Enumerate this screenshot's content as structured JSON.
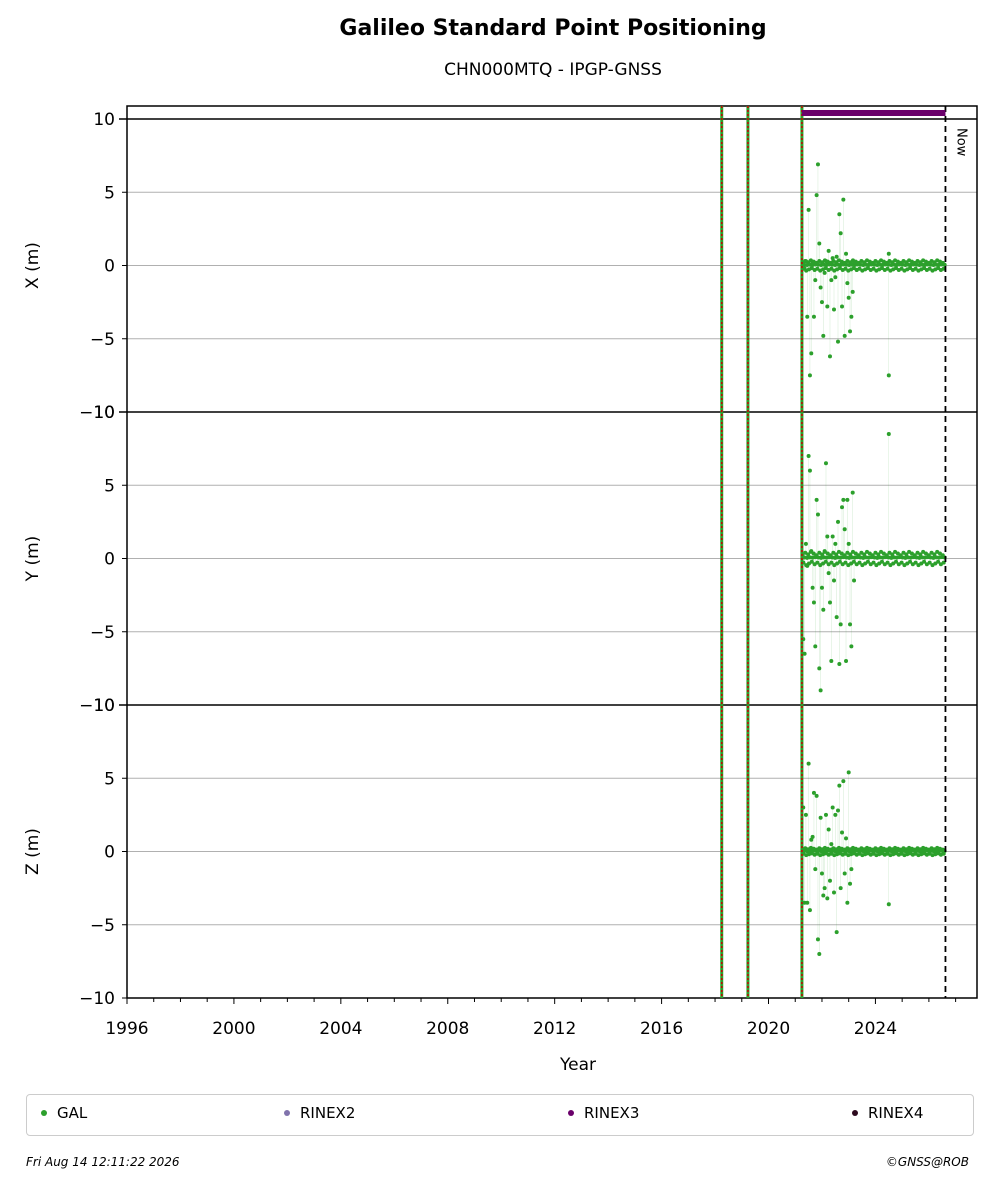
{
  "title": "Galileo Standard Point Positioning",
  "subtitle": "CHN000MTQ - IPGP-GNSS",
  "chart_data": {
    "type": "scatter",
    "xlabel": "Year",
    "xlim": [
      1996.0,
      2027.8
    ],
    "xticks": [
      1996,
      2000,
      2004,
      2008,
      2012,
      2016,
      2020,
      2024
    ],
    "now_label": "Now",
    "now_date": 2026.62,
    "event_lines": [
      2018.25,
      2019.23,
      2021.25
    ],
    "rinex3_coverage": [
      2021.25,
      2026.62
    ],
    "grid": true,
    "panels": [
      {
        "ylabel": "X (m)",
        "ylim": [
          -10,
          10
        ],
        "yticks": [
          -10,
          -5,
          0,
          5,
          10
        ],
        "points": [
          [
            2021.3,
            0.1
          ],
          [
            2021.35,
            -0.2
          ],
          [
            2021.4,
            0.3
          ],
          [
            2021.45,
            -3.5
          ],
          [
            2021.5,
            3.8
          ],
          [
            2021.55,
            -7.5
          ],
          [
            2021.6,
            -6.0
          ],
          [
            2021.65,
            0.2
          ],
          [
            2021.7,
            -3.5
          ],
          [
            2021.75,
            -1.0
          ],
          [
            2021.8,
            4.8
          ],
          [
            2021.85,
            6.9
          ],
          [
            2021.9,
            1.5
          ],
          [
            2021.95,
            -1.5
          ],
          [
            2022.0,
            -2.5
          ],
          [
            2022.05,
            -4.8
          ],
          [
            2022.1,
            -0.5
          ],
          [
            2022.15,
            0.3
          ],
          [
            2022.2,
            -2.8
          ],
          [
            2022.25,
            1.0
          ],
          [
            2022.3,
            -6.2
          ],
          [
            2022.35,
            -1.0
          ],
          [
            2022.4,
            0.5
          ],
          [
            2022.45,
            -3.0
          ],
          [
            2022.5,
            -0.8
          ],
          [
            2022.55,
            0.6
          ],
          [
            2022.6,
            -5.2
          ],
          [
            2022.65,
            3.5
          ],
          [
            2022.7,
            2.2
          ],
          [
            2022.75,
            -2.8
          ],
          [
            2022.8,
            4.5
          ],
          [
            2022.85,
            -4.8
          ],
          [
            2022.9,
            0.8
          ],
          [
            2022.95,
            -1.2
          ],
          [
            2023.0,
            -2.2
          ],
          [
            2023.05,
            -4.5
          ],
          [
            2023.1,
            -3.5
          ],
          [
            2023.15,
            -1.8
          ],
          [
            2023.2,
            0.2
          ],
          [
            2023.3,
            -0.3
          ],
          [
            2024.5,
            -7.5
          ],
          [
            2024.5,
            0.8
          ]
        ],
        "band": 0.35
      },
      {
        "ylabel": "Y (m)",
        "ylim": [
          -10,
          10
        ],
        "yticks": [
          -10,
          -5,
          0,
          5,
          10
        ],
        "points": [
          [
            2021.3,
            -5.5
          ],
          [
            2021.35,
            -6.5
          ],
          [
            2021.4,
            1.0
          ],
          [
            2021.45,
            -0.5
          ],
          [
            2021.5,
            7.0
          ],
          [
            2021.55,
            6.0
          ],
          [
            2021.6,
            0.5
          ],
          [
            2021.65,
            -2.0
          ],
          [
            2021.7,
            -3.0
          ],
          [
            2021.75,
            -6.0
          ],
          [
            2021.8,
            4.0
          ],
          [
            2021.85,
            3.0
          ],
          [
            2021.9,
            -7.5
          ],
          [
            2021.95,
            -9.0
          ],
          [
            2022.0,
            -2.0
          ],
          [
            2022.05,
            -3.5
          ],
          [
            2022.1,
            0.5
          ],
          [
            2022.15,
            6.5
          ],
          [
            2022.2,
            1.5
          ],
          [
            2022.25,
            -1.0
          ],
          [
            2022.3,
            -3.0
          ],
          [
            2022.35,
            -7.0
          ],
          [
            2022.4,
            1.5
          ],
          [
            2022.45,
            -1.5
          ],
          [
            2022.5,
            1.0
          ],
          [
            2022.55,
            -4.0
          ],
          [
            2022.6,
            2.5
          ],
          [
            2022.65,
            -7.2
          ],
          [
            2022.7,
            -4.5
          ],
          [
            2022.75,
            3.5
          ],
          [
            2022.8,
            4.0
          ],
          [
            2022.85,
            2.0
          ],
          [
            2022.9,
            -7.0
          ],
          [
            2022.95,
            4.0
          ],
          [
            2023.0,
            1.0
          ],
          [
            2023.05,
            -4.5
          ],
          [
            2023.1,
            -6.0
          ],
          [
            2023.15,
            4.5
          ],
          [
            2023.2,
            -1.5
          ],
          [
            2024.5,
            8.5
          ]
        ],
        "band": 0.45
      },
      {
        "ylabel": "Z (m)",
        "ylim": [
          -10,
          10
        ],
        "yticks": [
          -10,
          -5,
          0,
          5,
          10
        ],
        "points": [
          [
            2021.3,
            3.0
          ],
          [
            2021.35,
            -3.5
          ],
          [
            2021.4,
            2.5
          ],
          [
            2021.45,
            -3.5
          ],
          [
            2021.5,
            6.0
          ],
          [
            2021.55,
            -4.0
          ],
          [
            2021.6,
            0.8
          ],
          [
            2021.65,
            1.0
          ],
          [
            2021.7,
            4.0
          ],
          [
            2021.75,
            -1.2
          ],
          [
            2021.8,
            3.8
          ],
          [
            2021.85,
            -6.0
          ],
          [
            2021.9,
            -7.0
          ],
          [
            2021.95,
            2.3
          ],
          [
            2022.0,
            -1.5
          ],
          [
            2022.05,
            -3.0
          ],
          [
            2022.1,
            -2.5
          ],
          [
            2022.15,
            2.5
          ],
          [
            2022.2,
            -3.2
          ],
          [
            2022.25,
            1.5
          ],
          [
            2022.3,
            -2.0
          ],
          [
            2022.35,
            0.5
          ],
          [
            2022.4,
            3.0
          ],
          [
            2022.45,
            -2.8
          ],
          [
            2022.5,
            2.5
          ],
          [
            2022.55,
            -5.5
          ],
          [
            2022.6,
            2.8
          ],
          [
            2022.65,
            4.5
          ],
          [
            2022.7,
            -2.5
          ],
          [
            2022.75,
            1.3
          ],
          [
            2022.8,
            4.8
          ],
          [
            2022.85,
            -1.5
          ],
          [
            2022.9,
            0.9
          ],
          [
            2022.95,
            -3.5
          ],
          [
            2023.0,
            5.4
          ],
          [
            2023.05,
            -2.2
          ],
          [
            2023.1,
            -1.2
          ],
          [
            2024.5,
            -3.6
          ]
        ],
        "band": 0.25
      }
    ]
  },
  "legend": [
    {
      "label": "GAL",
      "color": "#2ca02c"
    },
    {
      "label": "RINEX2",
      "color": "#8073ac"
    },
    {
      "label": "RINEX3",
      "color": "#6a006a"
    },
    {
      "label": "RINEX4",
      "color": "#2d0a1e"
    }
  ],
  "colors": {
    "gal": "#2ca02c",
    "rinex3": "#6a006a",
    "event_outer": "#2ca02c",
    "event_inner": "#cc0000",
    "grid": "#b0b0b0"
  },
  "footer": {
    "timestamp": "Fri Aug 14 12:11:22 2026",
    "credit": "©GNSS@ROB"
  }
}
